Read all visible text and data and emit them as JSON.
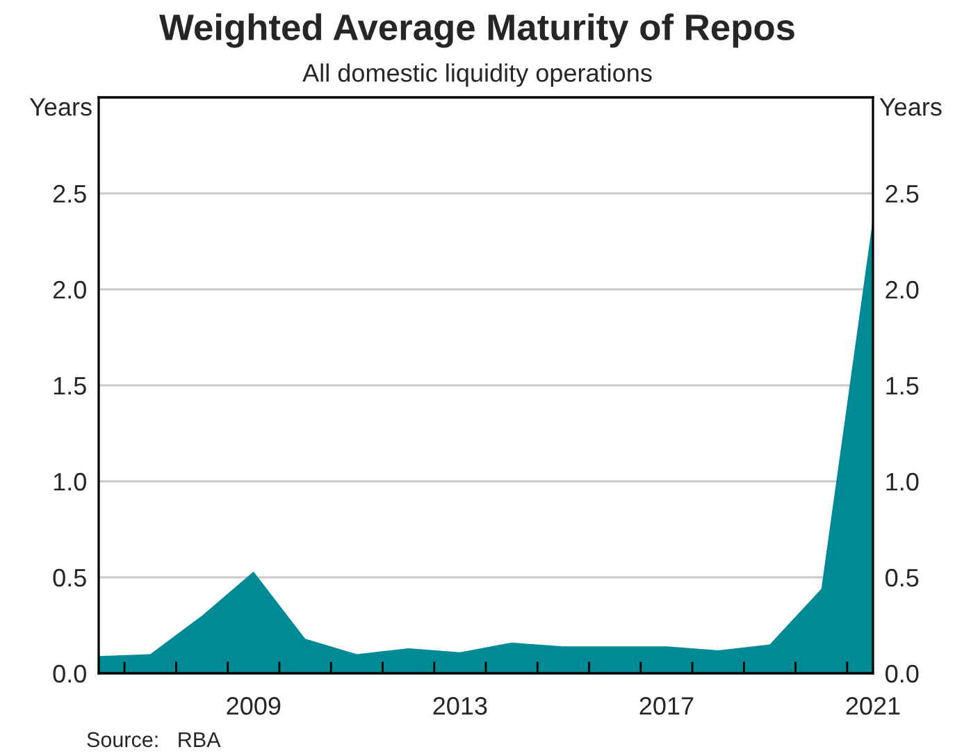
{
  "chart_data": {
    "type": "area",
    "title": "Weighted Average Maturity of Repos",
    "subtitle": "All domestic liquidity operations",
    "ylabel": "Years",
    "y2label": "Years",
    "x": [
      2006,
      2007,
      2008,
      2009,
      2010,
      2011,
      2012,
      2013,
      2014,
      2015,
      2016,
      2017,
      2018,
      2019,
      2020,
      2021
    ],
    "series": [
      {
        "color": "#008a96",
        "values": [
          0.09,
          0.1,
          0.3,
          0.53,
          0.18,
          0.1,
          0.13,
          0.11,
          0.16,
          0.14,
          0.14,
          0.14,
          0.12,
          0.15,
          0.44,
          2.37
        ]
      }
    ],
    "xlim": [
      2006,
      2021
    ],
    "xticks": [
      {
        "value": 2006.5,
        "label": null
      },
      {
        "value": 2007.5,
        "label": null
      },
      {
        "value": 2008.5,
        "label": null
      },
      {
        "value": 2009,
        "label": "2009"
      },
      {
        "value": 2009.5,
        "label": null
      },
      {
        "value": 2010.5,
        "label": null
      },
      {
        "value": 2011.5,
        "label": null
      },
      {
        "value": 2012.5,
        "label": null
      },
      {
        "value": 2013,
        "label": "2013"
      },
      {
        "value": 2013.5,
        "label": null
      },
      {
        "value": 2014.5,
        "label": null
      },
      {
        "value": 2015.5,
        "label": null
      },
      {
        "value": 2016.5,
        "label": null
      },
      {
        "value": 2017,
        "label": "2017"
      },
      {
        "value": 2017.5,
        "label": null
      },
      {
        "value": 2018.5,
        "label": null
      },
      {
        "value": 2019.5,
        "label": null
      },
      {
        "value": 2020.5,
        "label": null
      },
      {
        "value": 2021,
        "label": "2021"
      }
    ],
    "ylim": [
      0,
      3
    ],
    "yticks": [
      {
        "value": 0,
        "label": "0.0"
      },
      {
        "value": 0.5,
        "label": "0.5"
      },
      {
        "value": 1,
        "label": "1.0"
      },
      {
        "value": 1.5,
        "label": "1.5"
      },
      {
        "value": 2,
        "label": "2.0"
      },
      {
        "value": 2.5,
        "label": "2.5"
      }
    ],
    "y2lim": [
      0,
      3
    ],
    "y2ticks": [
      {
        "value": 0,
        "label": "0.0"
      },
      {
        "value": 0.5,
        "label": "0.5"
      },
      {
        "value": 1,
        "label": "1.0"
      },
      {
        "value": 1.5,
        "label": "1.5"
      },
      {
        "value": 2,
        "label": "2.0"
      },
      {
        "value": 2.5,
        "label": "2.5"
      }
    ],
    "grid": "y",
    "annotations": [
      "Source:   RBA"
    ]
  }
}
